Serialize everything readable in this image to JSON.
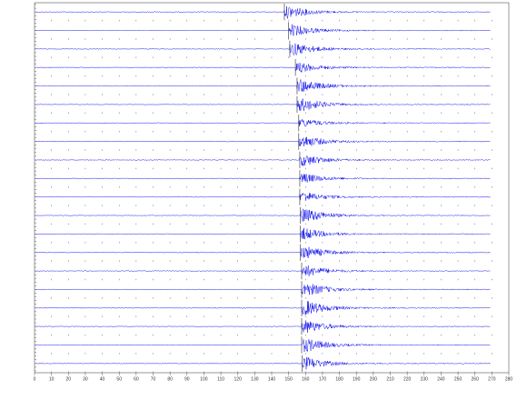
{
  "chart_data": {
    "type": "seismogram",
    "color": "#1a1aee",
    "xlim": [
      0,
      280
    ],
    "xticks": [
      0,
      10,
      20,
      30,
      40,
      50,
      60,
      70,
      80,
      90,
      100,
      110,
      120,
      130,
      140,
      150,
      160,
      170,
      180,
      190,
      200,
      210,
      220,
      230,
      240,
      250,
      260,
      270,
      280
    ],
    "traces": [
      {
        "arrival": 147.5,
        "amplitude": 0.75
      },
      {
        "arrival": 150,
        "amplitude": 0.7
      },
      {
        "arrival": 150.7,
        "amplitude": 0.8
      },
      {
        "arrival": 154,
        "amplitude": 0.6
      },
      {
        "arrival": 155,
        "amplitude": 0.8
      },
      {
        "arrival": 155,
        "amplitude": 0.85
      },
      {
        "arrival": 156,
        "amplitude": 0.5
      },
      {
        "arrival": 156,
        "amplitude": 0.75
      },
      {
        "arrival": 156.6,
        "amplitude": 0.7
      },
      {
        "arrival": 156.6,
        "amplitude": 0.6
      },
      {
        "arrival": 156.6,
        "amplitude": 0.6
      },
      {
        "arrival": 157,
        "amplitude": 0.9
      },
      {
        "arrival": 157,
        "amplitude": 0.7
      },
      {
        "arrival": 157,
        "amplitude": 0.8
      },
      {
        "arrival": 157.7,
        "amplitude": 0.7
      },
      {
        "arrival": 157.7,
        "amplitude": 0.85
      },
      {
        "arrival": 157.7,
        "amplitude": 0.9
      },
      {
        "arrival": 157.7,
        "amplitude": 0.8
      },
      {
        "arrival": 157.7,
        "amplitude": 0.85
      },
      {
        "arrival": 158,
        "amplitude": 0.75
      }
    ]
  }
}
